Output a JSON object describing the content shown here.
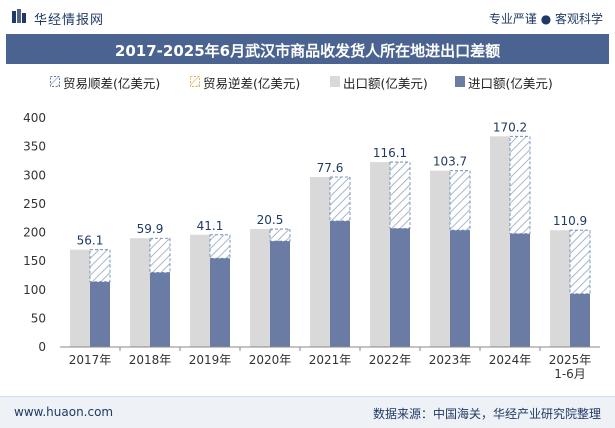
{
  "header": {
    "brand": "华经情报网",
    "slogan": "专业严谨 ● 客观科学"
  },
  "footer": {
    "website": "www.huaon.com",
    "source": "数据来源：中国海关，华经产业研究院整理"
  },
  "colors": {
    "export": "#d9d9d9",
    "import": "#6a7ba4",
    "surplus_stroke": "#5b7fb3",
    "deficit_stroke": "#e0b34a",
    "title_bg": "#4b6390"
  },
  "chart_data": {
    "type": "bar",
    "title": "2017-2025年6月武汉市商品收发货人所在地进出口差额",
    "categories": [
      "2017年",
      "2018年",
      "2019年",
      "2020年",
      "2021年",
      "2022年",
      "2023年",
      "2024年",
      "2025年 1-6月"
    ],
    "series": [
      {
        "name": "贸易顺差(亿美元)",
        "values": [
          56.1,
          59.9,
          41.1,
          20.5,
          77.6,
          116.1,
          103.7,
          170.2,
          110.9
        ]
      },
      {
        "name": "贸易逆差(亿美元)",
        "values": [
          0,
          0,
          0,
          0,
          0,
          0,
          0,
          0,
          0
        ]
      },
      {
        "name": "出口额(亿美元)",
        "values": [
          170,
          190,
          196,
          206,
          297,
          323,
          308,
          368,
          204
        ]
      },
      {
        "name": "进口额(亿美元)",
        "values": [
          114,
          130,
          155,
          185,
          220,
          207,
          204,
          198,
          93
        ]
      }
    ],
    "data_labels": [
      "56.1",
      "59.9",
      "41.1",
      "20.5",
      "77.6",
      "116.1",
      "103.7",
      "170.2",
      "110.9"
    ],
    "y_ticks": [
      "0",
      "50",
      "100",
      "150",
      "200",
      "250",
      "300",
      "350",
      "400"
    ],
    "ylim": [
      0,
      400
    ],
    "legend_position": "top",
    "grid": false
  }
}
